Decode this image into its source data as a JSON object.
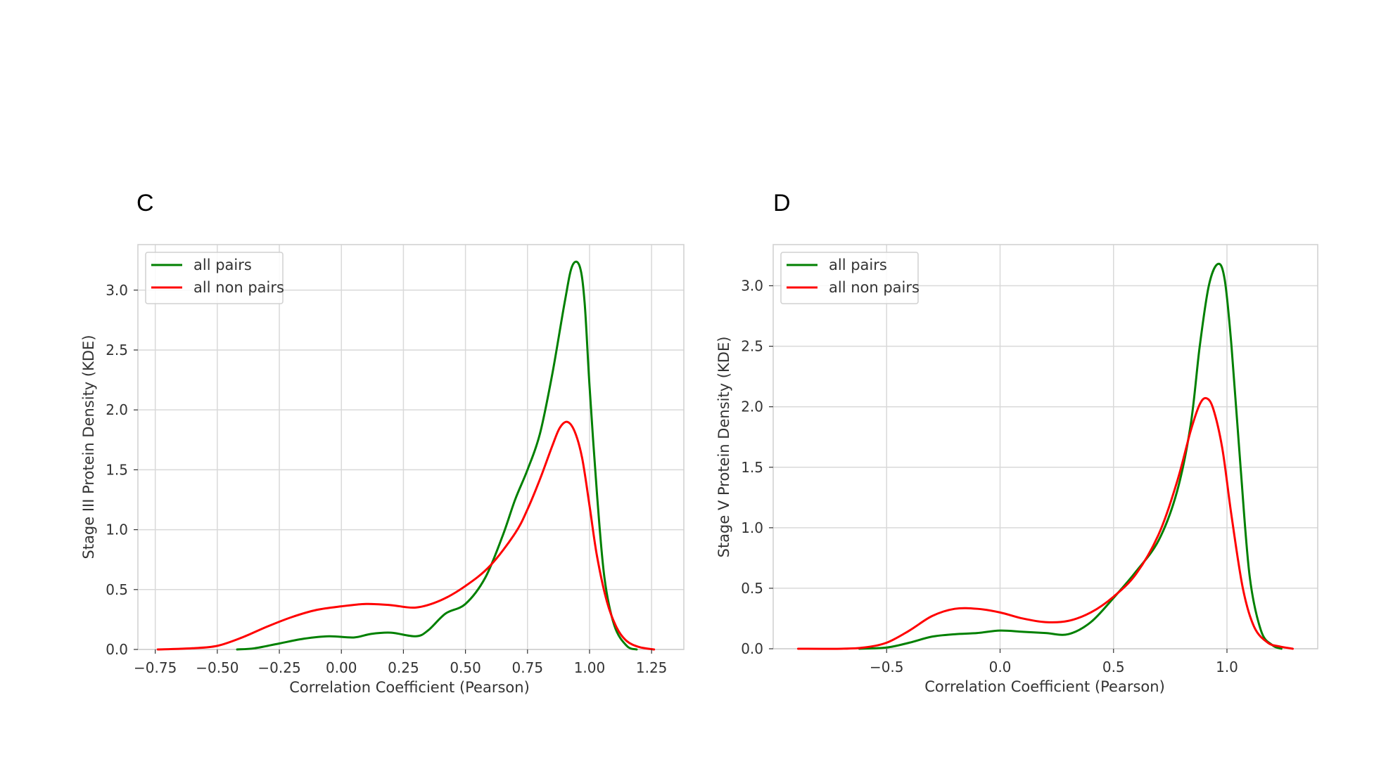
{
  "chart_data": [
    {
      "panel_label": "C",
      "type": "line",
      "xlabel": "Correlation Coefficient (Pearson)",
      "ylabel": "Stage III Protein Density (KDE)",
      "xlim": [
        -0.82,
        1.38
      ],
      "ylim": [
        0,
        3.38
      ],
      "xticks": [
        -0.75,
        -0.5,
        -0.25,
        0.0,
        0.25,
        0.5,
        0.75,
        1.0,
        1.25
      ],
      "xtick_labels": [
        "−0.75",
        "−0.50",
        "−0.25",
        "0.00",
        "0.25",
        "0.50",
        "0.75",
        "1.00",
        "1.25"
      ],
      "yticks": [
        0.0,
        0.5,
        1.0,
        1.5,
        2.0,
        2.5,
        3.0
      ],
      "ytick_labels": [
        "0.0",
        "0.5",
        "1.0",
        "1.5",
        "2.0",
        "2.5",
        "3.0"
      ],
      "grid": true,
      "legend_position": "top-left",
      "series": [
        {
          "name": "all pairs",
          "color": "#008000",
          "x": [
            -0.42,
            -0.35,
            -0.25,
            -0.15,
            -0.05,
            0.05,
            0.12,
            0.2,
            0.3,
            0.35,
            0.42,
            0.5,
            0.58,
            0.65,
            0.7,
            0.75,
            0.8,
            0.85,
            0.9,
            0.93,
            0.96,
            0.98,
            1.0,
            1.03,
            1.06,
            1.1,
            1.15,
            1.19
          ],
          "y": [
            0.0,
            0.01,
            0.05,
            0.09,
            0.11,
            0.1,
            0.13,
            0.14,
            0.11,
            0.16,
            0.3,
            0.38,
            0.6,
            0.95,
            1.25,
            1.5,
            1.8,
            2.3,
            2.9,
            3.2,
            3.2,
            2.9,
            2.2,
            1.3,
            0.6,
            0.2,
            0.03,
            0.0
          ]
        },
        {
          "name": "all non pairs",
          "color": "#ff0000",
          "x": [
            -0.74,
            -0.6,
            -0.5,
            -0.4,
            -0.3,
            -0.2,
            -0.1,
            0.0,
            0.1,
            0.2,
            0.3,
            0.4,
            0.5,
            0.6,
            0.7,
            0.75,
            0.8,
            0.85,
            0.88,
            0.91,
            0.94,
            0.97,
            1.0,
            1.03,
            1.07,
            1.11,
            1.15,
            1.2,
            1.26
          ],
          "y": [
            0.0,
            0.01,
            0.03,
            0.1,
            0.19,
            0.27,
            0.33,
            0.36,
            0.38,
            0.37,
            0.35,
            0.41,
            0.53,
            0.7,
            0.97,
            1.17,
            1.42,
            1.7,
            1.85,
            1.9,
            1.82,
            1.6,
            1.2,
            0.78,
            0.4,
            0.18,
            0.07,
            0.02,
            0.0
          ]
        }
      ]
    },
    {
      "panel_label": "D",
      "type": "line",
      "xlabel": "Correlation Coefficient (Pearson)",
      "ylabel": "Stage V Protein Density (KDE)",
      "xlim": [
        -1.0,
        1.4
      ],
      "ylim": [
        0,
        3.34
      ],
      "xticks": [
        -0.5,
        0.0,
        0.5,
        1.0
      ],
      "xtick_labels": [
        "−0.5",
        "0.0",
        "0.5",
        "1.0"
      ],
      "yticks": [
        0.0,
        0.5,
        1.0,
        1.5,
        2.0,
        2.5,
        3.0
      ],
      "ytick_labels": [
        "0.0",
        "0.5",
        "1.0",
        "1.5",
        "2.0",
        "2.5",
        "3.0"
      ],
      "grid": true,
      "legend_position": "top-left",
      "series": [
        {
          "name": "all pairs",
          "color": "#008000",
          "x": [
            -0.62,
            -0.5,
            -0.4,
            -0.3,
            -0.2,
            -0.1,
            0.0,
            0.1,
            0.2,
            0.3,
            0.4,
            0.5,
            0.6,
            0.7,
            0.78,
            0.84,
            0.88,
            0.92,
            0.96,
            0.99,
            1.02,
            1.06,
            1.1,
            1.15,
            1.2,
            1.24
          ],
          "y": [
            0.0,
            0.01,
            0.05,
            0.1,
            0.12,
            0.13,
            0.15,
            0.14,
            0.13,
            0.12,
            0.22,
            0.42,
            0.64,
            0.9,
            1.3,
            1.85,
            2.5,
            3.0,
            3.18,
            3.05,
            2.5,
            1.5,
            0.6,
            0.15,
            0.03,
            0.0
          ]
        },
        {
          "name": "all non pairs",
          "color": "#ff0000",
          "x": [
            -0.89,
            -0.7,
            -0.6,
            -0.5,
            -0.4,
            -0.3,
            -0.2,
            -0.1,
            0.0,
            0.1,
            0.2,
            0.3,
            0.4,
            0.5,
            0.6,
            0.7,
            0.78,
            0.84,
            0.88,
            0.91,
            0.94,
            0.98,
            1.02,
            1.07,
            1.12,
            1.18,
            1.23,
            1.29
          ],
          "y": [
            0.0,
            0.0,
            0.01,
            0.05,
            0.15,
            0.27,
            0.33,
            0.33,
            0.3,
            0.25,
            0.22,
            0.23,
            0.3,
            0.43,
            0.62,
            0.95,
            1.38,
            1.8,
            2.02,
            2.07,
            1.98,
            1.65,
            1.1,
            0.5,
            0.18,
            0.05,
            0.02,
            0.0
          ]
        }
      ]
    }
  ]
}
